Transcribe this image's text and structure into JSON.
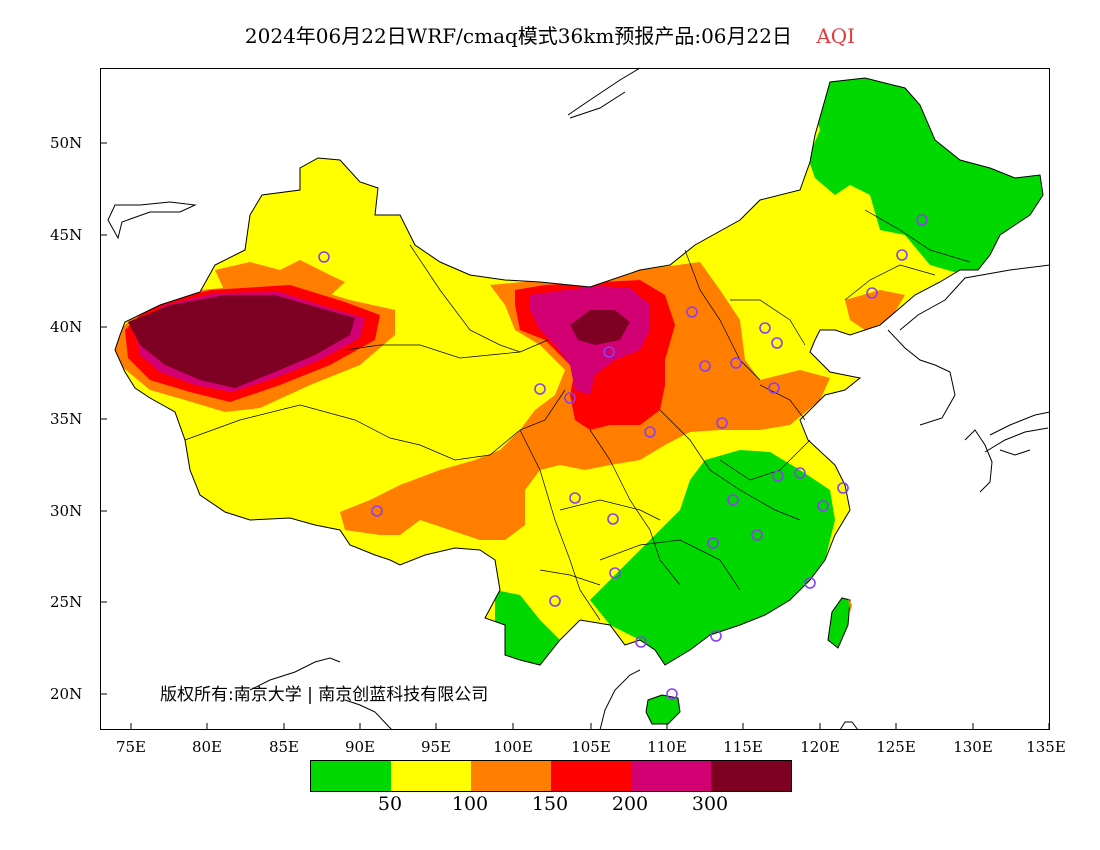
{
  "title": {
    "main": "2024年06月22日WRF/cmaq模式36km预报产品:06月22日",
    "variable": "AQI"
  },
  "axes": {
    "lat_labels": [
      "50N",
      "45N",
      "40N",
      "35N",
      "30N",
      "25N",
      "20N"
    ],
    "lon_labels": [
      "75E",
      "80E",
      "85E",
      "90E",
      "95E",
      "100E",
      "105E",
      "110E",
      "115E",
      "120E",
      "125E",
      "130E",
      "135E"
    ]
  },
  "copyright": "版权所有:南京大学 | 南京创蓝科技有限公司",
  "legend": {
    "colors": [
      "#00d800",
      "#ffff00",
      "#ff7e00",
      "#ff0000",
      "#d20072",
      "#7e0023"
    ],
    "thresholds": [
      "50",
      "100",
      "150",
      "200",
      "300"
    ]
  },
  "colors": {
    "coast": "#000000",
    "border": "#000000",
    "station_marker": "#8b3ff0"
  }
}
